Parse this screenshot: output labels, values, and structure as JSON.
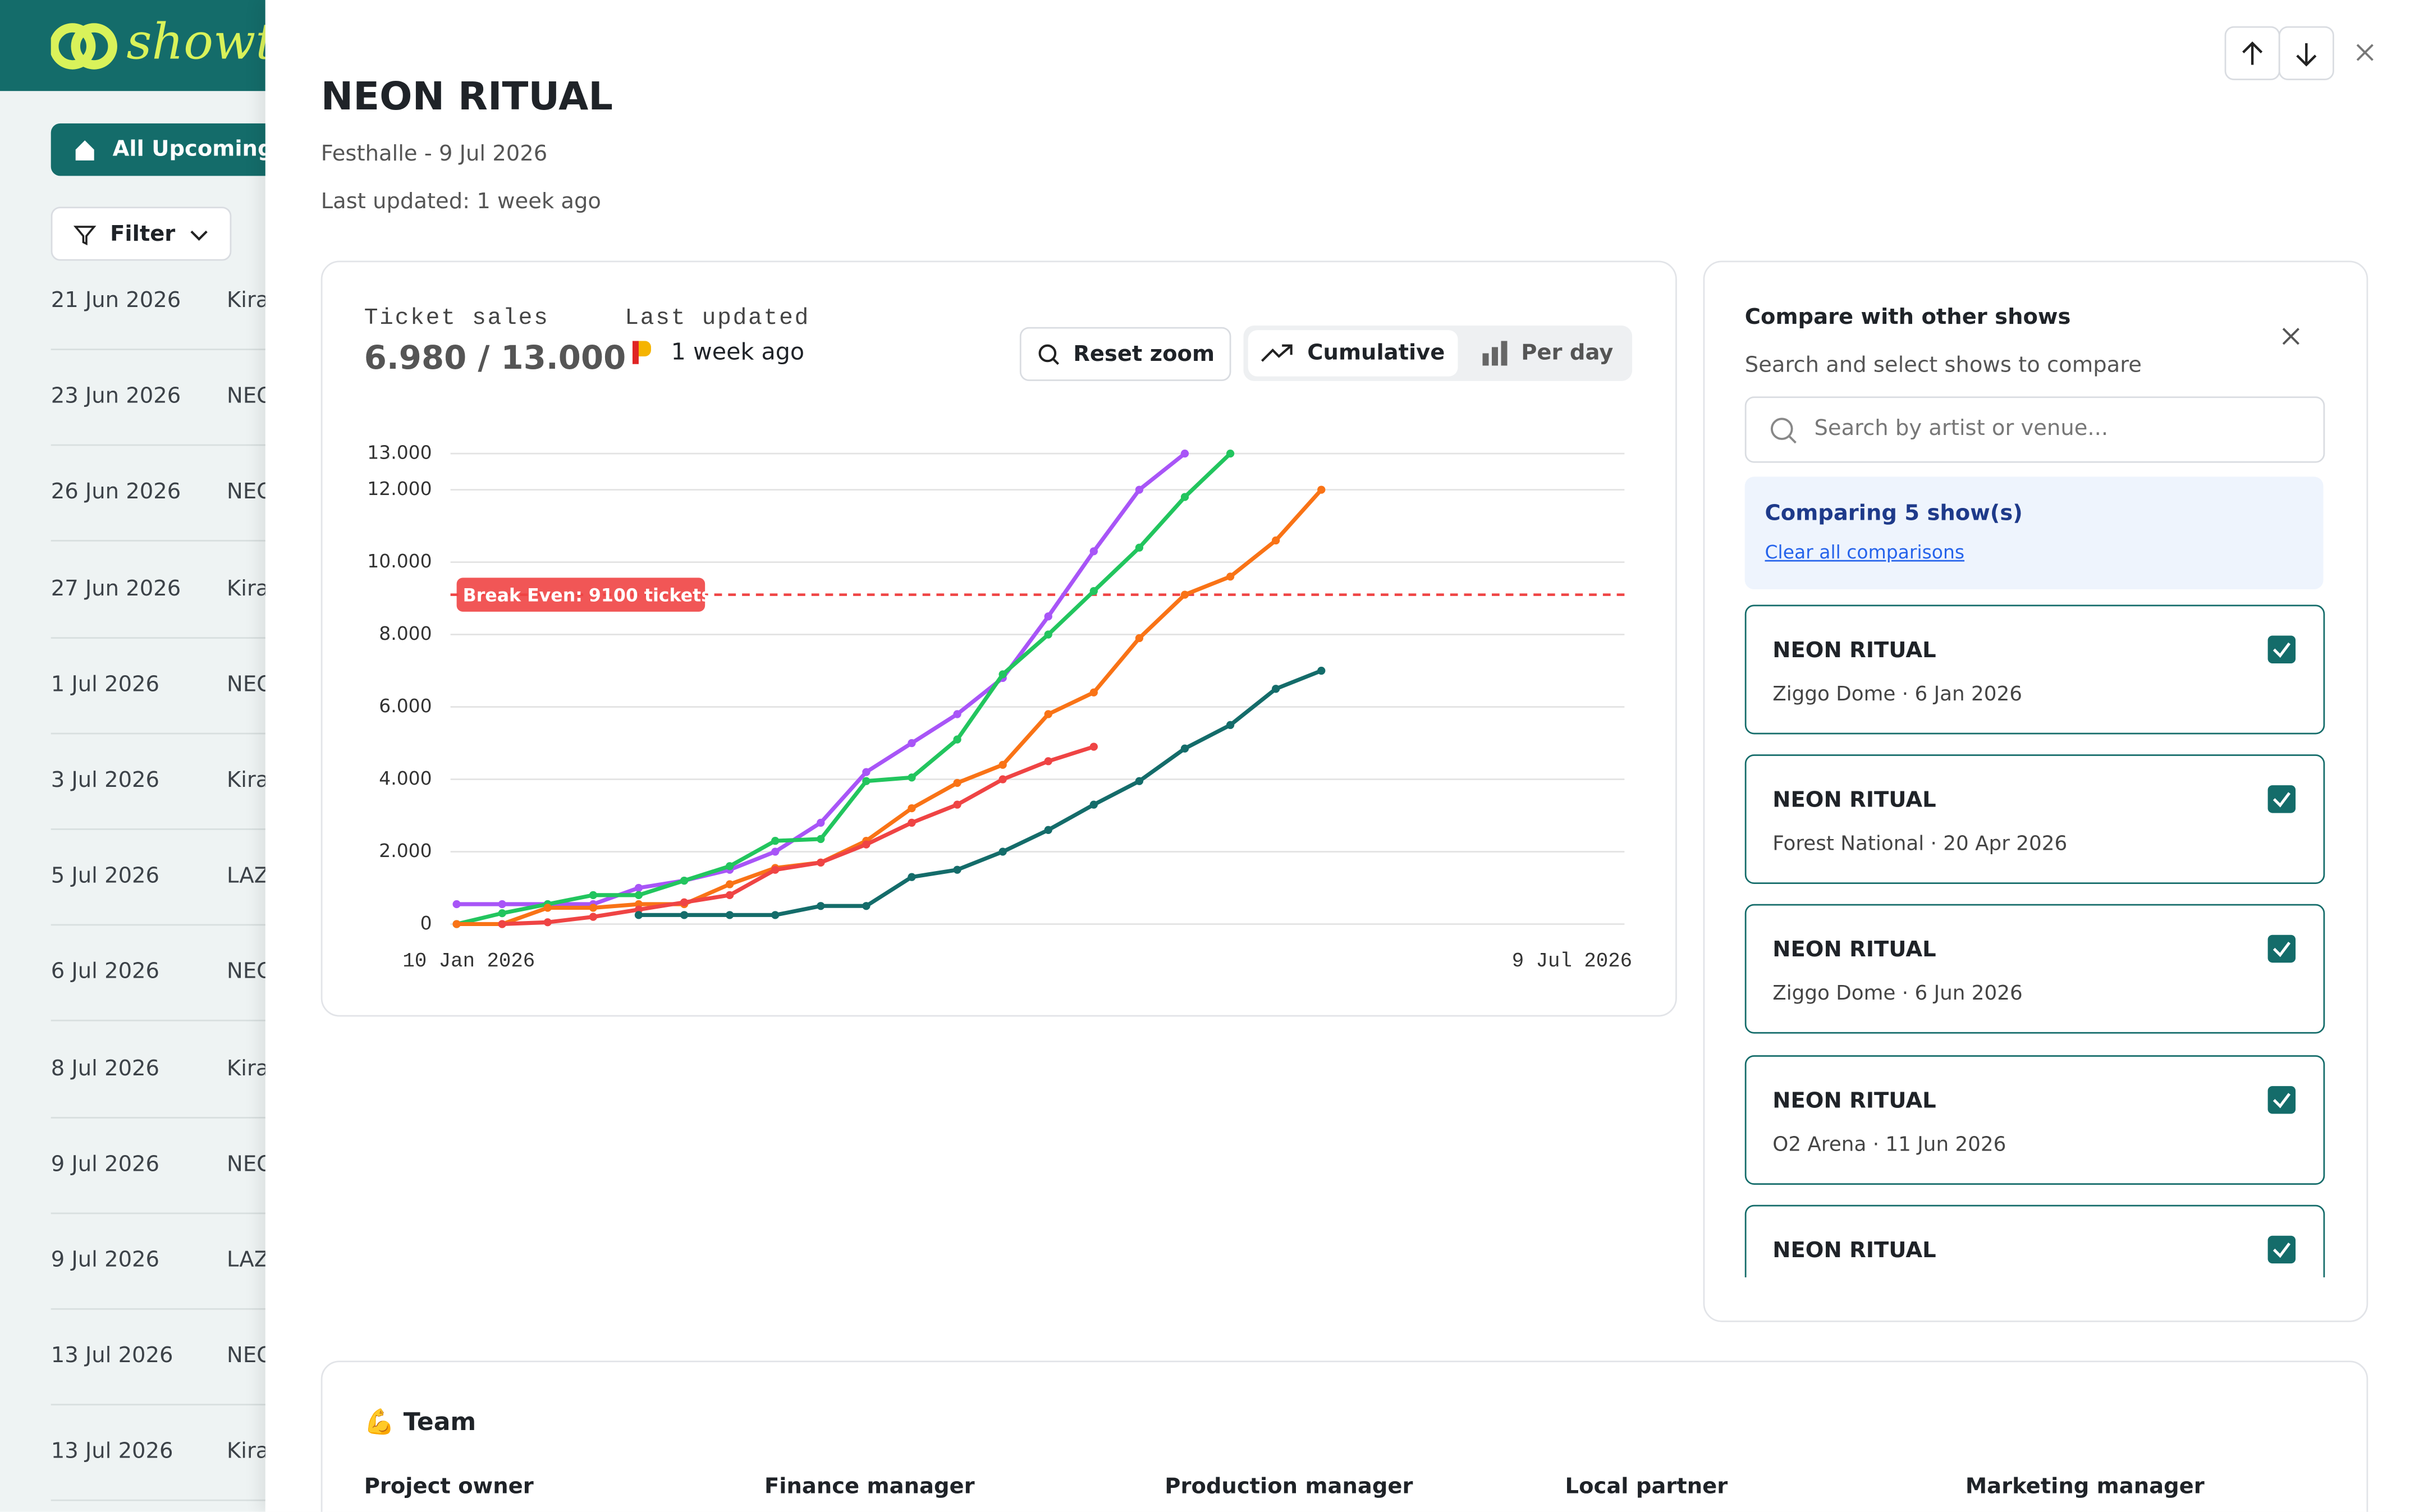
{
  "sidebar": {
    "logo": "showt",
    "all_upcoming": "All Upcoming",
    "filter": "Filter",
    "rows": [
      {
        "date": "21 Jun 2026",
        "name": "Kira"
      },
      {
        "date": "23 Jun 2026",
        "name": "NEO"
      },
      {
        "date": "26 Jun 2026",
        "name": "NEO"
      },
      {
        "date": "27 Jun 2026",
        "name": "Kira"
      },
      {
        "date": "1 Jul 2026",
        "name": "NEO"
      },
      {
        "date": "3 Jul 2026",
        "name": "Kira"
      },
      {
        "date": "5 Jul 2026",
        "name": "LAZ"
      },
      {
        "date": "6 Jul 2026",
        "name": "NEO"
      },
      {
        "date": "8 Jul 2026",
        "name": "Kira"
      },
      {
        "date": "9 Jul 2026",
        "name": "NEO"
      },
      {
        "date": "9 Jul 2026",
        "name": "LAZ"
      },
      {
        "date": "13 Jul 2026",
        "name": "NEO"
      },
      {
        "date": "13 Jul 2026",
        "name": "Kira"
      }
    ]
  },
  "header": {
    "title": "NEON RITUAL",
    "subtitle": "Festhalle - 9 Jul 2026",
    "last_updated": "Last updated: 1 week ago"
  },
  "sales": {
    "label": "Ticket sales",
    "value": "6.980 / 13.000",
    "updated_label": "Last updated",
    "updated_value": "1 week ago",
    "buttons": [
      "Reset zoom",
      "Cumulative",
      "Per day"
    ]
  },
  "chart": {
    "type": "line",
    "x_labels": [
      "10 Jan 2026",
      "9 Jul 2026"
    ],
    "ylim": [
      0,
      13000
    ],
    "yticks": [
      0,
      {
        "value": 2000,
        "label": "2.000"
      },
      {
        "value": 4000,
        "label": "4.000"
      },
      {
        "value": 6000,
        "label": "6.000"
      },
      {
        "value": 8000,
        "label": "8.000"
      },
      {
        "value": 10000,
        "label": "10.000"
      },
      {
        "value": 12000,
        "label": "12.000"
      },
      {
        "value": 13000,
        "label": "13.000"
      }
    ],
    "grid": true,
    "break_even": {
      "value": 9100,
      "label": "Break Even: 9100 tickets",
      "color": "#ef4444"
    },
    "series": [
      {
        "color": "#a855f7",
        "values": [
          550,
          550,
          550,
          550,
          1000,
          1200,
          1500,
          2000,
          2800,
          4200,
          5000,
          5800,
          6800,
          8500,
          10300,
          12000,
          13000,
          null,
          null,
          null
        ]
      },
      {
        "color": "#22c55e",
        "values": [
          0,
          300,
          550,
          800,
          800,
          1200,
          1600,
          2300,
          2350,
          3950,
          4050,
          5100,
          6900,
          8000,
          9200,
          10400,
          11800,
          13000,
          null,
          null
        ]
      },
      {
        "color": "#f97316",
        "values": [
          0,
          0,
          450,
          450,
          550,
          550,
          1100,
          1550,
          1700,
          2300,
          3200,
          3900,
          4400,
          5800,
          6400,
          7900,
          9100,
          9600,
          10600,
          12000
        ]
      },
      {
        "color": "#ef4444",
        "values": [
          null,
          0,
          50,
          200,
          400,
          600,
          800,
          1500,
          1700,
          2200,
          2800,
          3300,
          4000,
          4500,
          4900,
          null,
          null,
          null,
          null,
          null
        ]
      },
      {
        "color": "#146c6a",
        "values": [
          null,
          null,
          null,
          null,
          250,
          250,
          250,
          250,
          500,
          500,
          1300,
          1500,
          2000,
          2600,
          3300,
          3950,
          4850,
          5500,
          6500,
          7000
        ]
      }
    ]
  },
  "compare": {
    "title": "Compare with other shows",
    "subtitle": "Search and select shows to compare",
    "search_placeholder": "Search by artist or venue...",
    "comparing": "Comparing 5 show(s)",
    "clear": "Clear all comparisons",
    "shows": [
      {
        "name": "NEON RITUAL",
        "detail": "Ziggo Dome · 6 Jan 2026"
      },
      {
        "name": "NEON RITUAL",
        "detail": "Forest National · 20 Apr 2026"
      },
      {
        "name": "NEON RITUAL",
        "detail": "Ziggo Dome · 6 Jun 2026"
      },
      {
        "name": "NEON RITUAL",
        "detail": "O2 Arena · 11 Jun 2026"
      },
      {
        "name": "NEON RITUAL",
        "detail": ""
      }
    ]
  },
  "team": {
    "title": "💪 Team",
    "roles": [
      "Project owner",
      "Finance manager",
      "Production manager",
      "Local partner",
      "Marketing manager"
    ]
  }
}
